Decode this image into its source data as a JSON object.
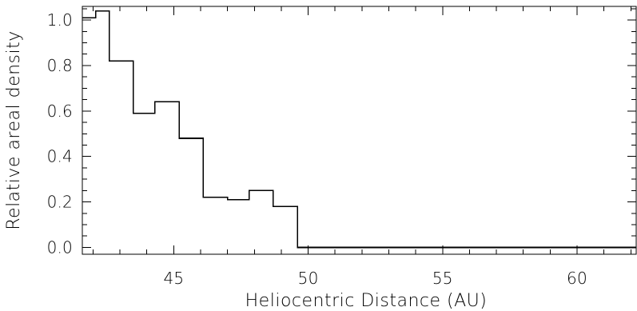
{
  "chart_data": {
    "type": "line",
    "style": "step-histogram",
    "title": "",
    "xlabel": "Heliocentric Distance (AU)",
    "ylabel": "Relative areal density",
    "xlim": [
      41.6,
      62.2
    ],
    "ylim": [
      -0.03,
      1.06
    ],
    "x_ticks": [
      45,
      50,
      55,
      60
    ],
    "x_tick_labels": [
      "45",
      "50",
      "55",
      "60"
    ],
    "x_minor_step": 1,
    "y_ticks": [
      0.0,
      0.2,
      0.4,
      0.6,
      0.8,
      1.0
    ],
    "y_tick_labels": [
      "0.0",
      "0.2",
      "0.4",
      "0.6",
      "0.8",
      "1.0"
    ],
    "y_minor_step": 0.05,
    "bin_edges": [
      41.6,
      42.1,
      42.6,
      43.5,
      44.3,
      45.2,
      46.1,
      47.0,
      47.8,
      48.7,
      49.6,
      62.2
    ],
    "values": [
      1.01,
      1.04,
      0.82,
      0.59,
      0.64,
      0.48,
      0.22,
      0.21,
      0.25,
      0.18,
      0.0
    ],
    "grid": false,
    "legend": "none",
    "line_color": "#000000"
  }
}
